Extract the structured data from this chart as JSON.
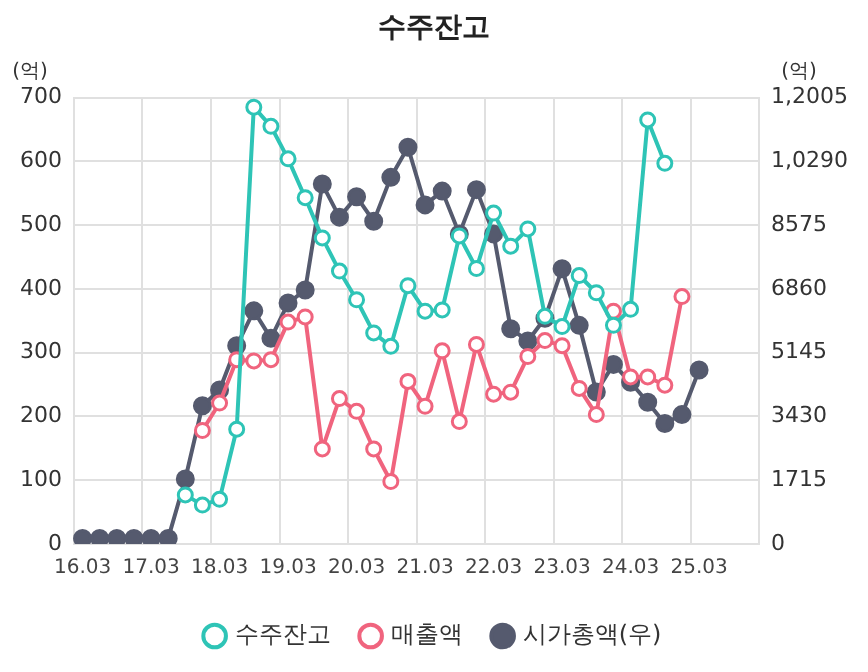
{
  "chart_data": {
    "type": "line",
    "title": "수주잔고",
    "ylabel": "(억)",
    "y2label": "(억)",
    "categories": [
      "16.03",
      null,
      null,
      null,
      "17.03",
      null,
      null,
      null,
      "18.03",
      null,
      null,
      null,
      "19.03",
      null,
      null,
      null,
      "20.03",
      null,
      null,
      null,
      "21.03",
      null,
      null,
      null,
      "22.03",
      null,
      null,
      null,
      "23.03",
      null,
      null,
      null,
      "24.03",
      null,
      null,
      null,
      "25.03",
      null,
      null,
      null
    ],
    "series": [
      {
        "name": "수주잔고",
        "color": "#2ec4b6",
        "marker": "circle",
        "values": [
          null,
          null,
          null,
          null,
          null,
          null,
          77,
          61,
          70,
          180,
          685,
          655,
          604,
          543,
          480,
          428,
          383,
          331,
          310,
          405,
          365,
          367,
          483,
          432,
          519,
          467,
          494,
          357,
          341,
          421,
          394,
          343,
          368,
          665,
          597,
          null,
          null,
          null,
          null,
          null
        ]
      },
      {
        "name": "매출액",
        "color": "#f0647e",
        "marker": "circle",
        "values": [
          null,
          null,
          null,
          null,
          null,
          null,
          null,
          178,
          221,
          289,
          287,
          289,
          348,
          356,
          149,
          228,
          208,
          149,
          98,
          255,
          216,
          303,
          192,
          313,
          235,
          238,
          294,
          319,
          311,
          244,
          203,
          365,
          262,
          262,
          249,
          388,
          null,
          null,
          null,
          null
        ]
      },
      {
        "name": "시가총액(우)",
        "color": "#555a6e",
        "marker": "circle",
        "axis": "y2",
        "values": [
          150,
          150,
          150,
          150,
          150,
          150,
          1750,
          3720,
          4140,
          5330,
          6270,
          5530,
          6480,
          6830,
          9680,
          8790,
          9340,
          8680,
          9860,
          10670,
          9120,
          9490,
          8340,
          9530,
          8340,
          5790,
          5460,
          6070,
          7400,
          5880,
          4090,
          4830,
          4350,
          3810,
          3240,
          3480,
          4680,
          null,
          null,
          null
        ]
      }
    ],
    "ylim": [
      0,
      700
    ],
    "yticks": [
      0,
      100,
      200,
      300,
      400,
      500,
      600,
      700
    ],
    "y2lim": [
      0,
      12005
    ],
    "y2ticks": [
      0,
      1715,
      3430,
      5145,
      6860,
      8575,
      {
        "value": 10290,
        "label": "1,0290"
      },
      {
        "value": 12005,
        "label": "1,2005"
      }
    ],
    "grid": true,
    "legend": "bottom"
  }
}
